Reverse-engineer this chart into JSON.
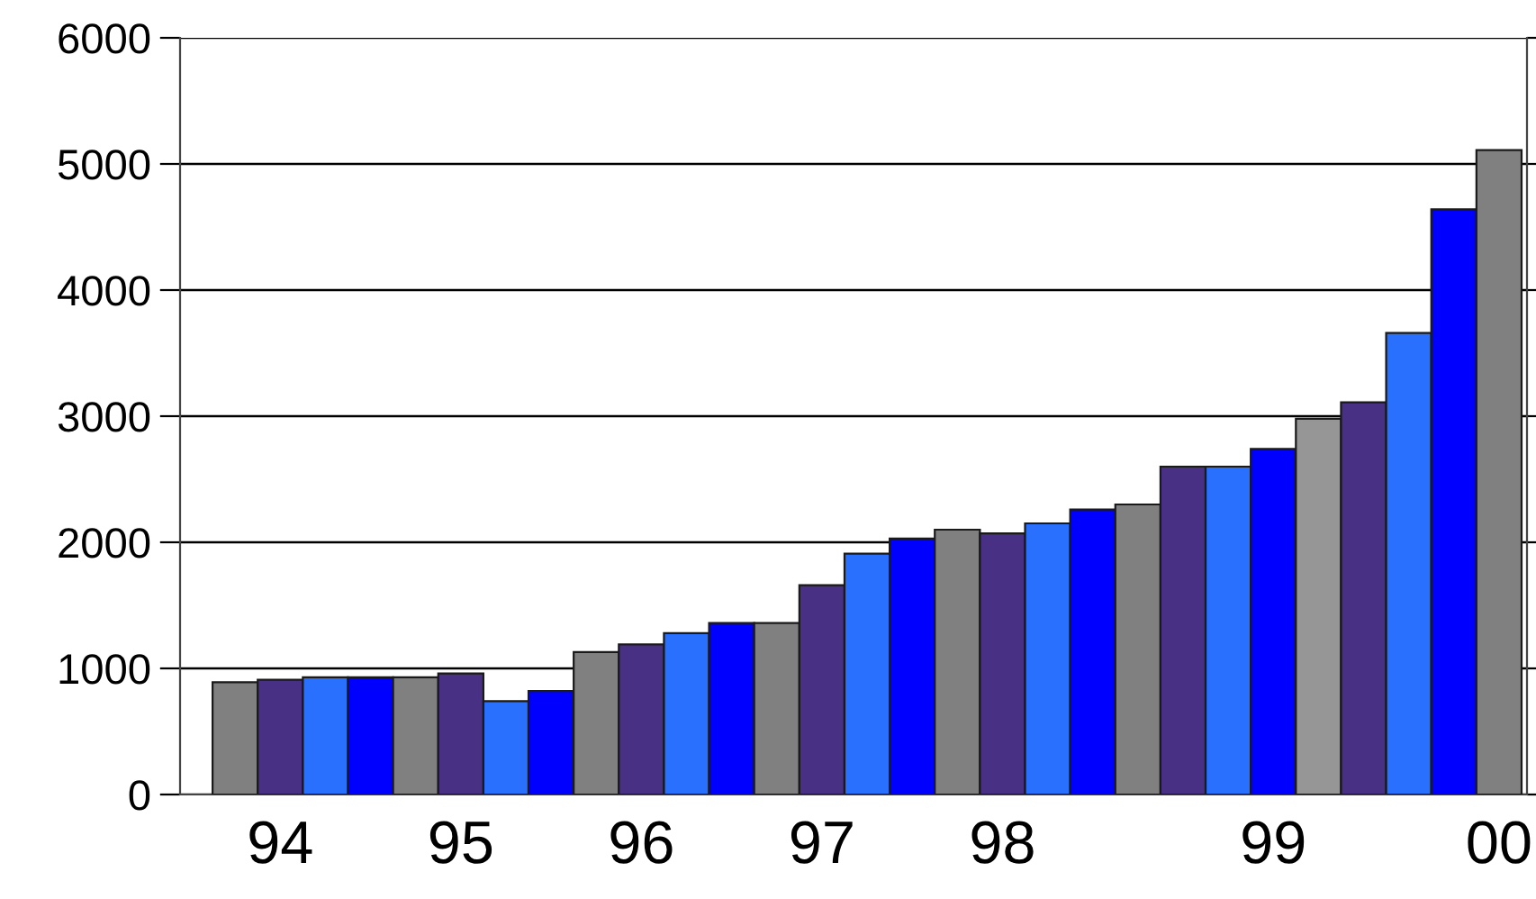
{
  "chart_data": {
    "type": "bar",
    "categories": [
      null,
      "94",
      null,
      null,
      null,
      "95",
      null,
      null,
      null,
      "96",
      null,
      null,
      null,
      "97",
      null,
      null,
      null,
      "98",
      null,
      null,
      null,
      null,
      null,
      "99",
      null,
      null,
      null,
      null,
      "00"
    ],
    "values": [
      890,
      910,
      930,
      930,
      930,
      960,
      740,
      820,
      1130,
      1190,
      1280,
      1360,
      1360,
      1660,
      1910,
      2030,
      2100,
      2070,
      2150,
      2260,
      2300,
      2600,
      2600,
      2740,
      2980,
      3110,
      3660,
      4640,
      5110
    ],
    "colors": [
      "#808080",
      "#483185",
      "#2970ff",
      "#0000ff",
      "#808080",
      "#483185",
      "#2970ff",
      "#0000ff",
      "#808080",
      "#483185",
      "#2970ff",
      "#0000ff",
      "#808080",
      "#483185",
      "#2970ff",
      "#0000ff",
      "#808080",
      "#483185",
      "#2970ff",
      "#0000ff",
      "#808080",
      "#483185",
      "#2970ff",
      "#0000ff",
      "#969696",
      "#483185",
      "#2970ff",
      "#0000ff",
      "#808080"
    ],
    "ylim": [
      0,
      6000
    ],
    "yticks": [
      0,
      1000,
      2000,
      3000,
      4000,
      5000,
      6000
    ],
    "grid": "y"
  }
}
